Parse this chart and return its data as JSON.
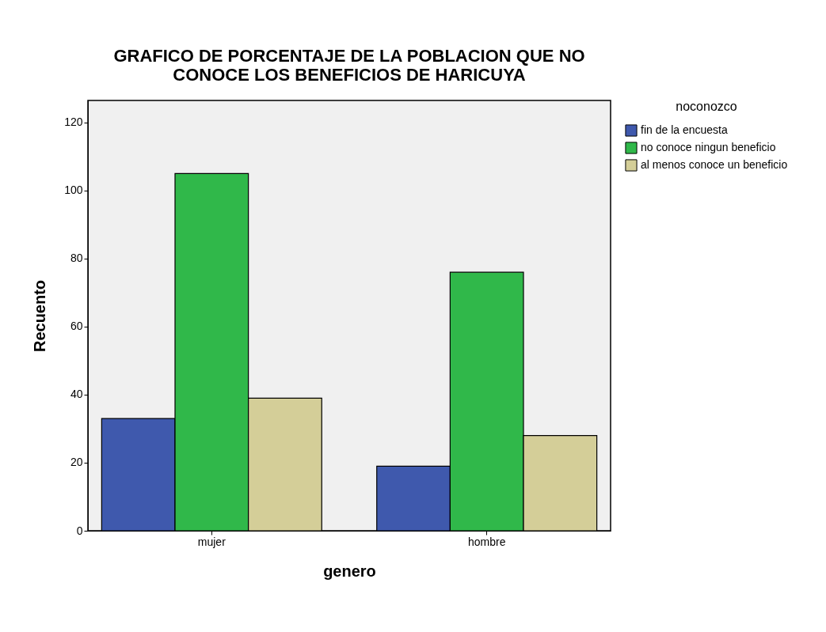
{
  "chart_data": {
    "type": "bar",
    "title": "GRAFICO DE PORCENTAJE DE LA POBLACION QUE NO CONOCE LOS BENEFICIOS DE HARICUYA",
    "xlabel": "genero",
    "ylabel": "Recuento",
    "legend_title": "noconozco",
    "categories": [
      "mujer",
      "hombre"
    ],
    "series": [
      {
        "name": "fin de la encuesta",
        "color": "#3f59ad",
        "values": [
          33,
          19
        ]
      },
      {
        "name": "no conoce ningun beneficio",
        "color": "#30b84a",
        "values": [
          105,
          76
        ]
      },
      {
        "name": "al menos conoce un beneficio",
        "color": "#d4ce98",
        "values": [
          39,
          28
        ]
      }
    ],
    "ylim": [
      0,
      126.5
    ],
    "yticks": [
      0,
      20,
      40,
      60,
      80,
      100,
      120
    ],
    "grid": false,
    "legend": "top right"
  }
}
